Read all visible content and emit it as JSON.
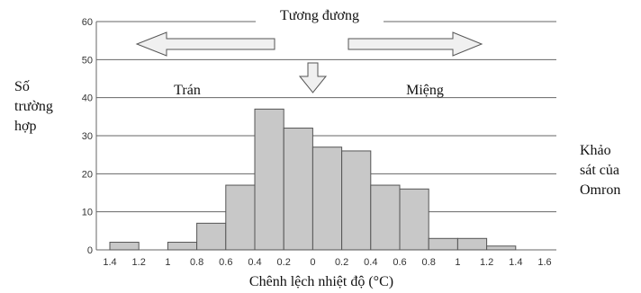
{
  "chart_data": {
    "type": "bar",
    "title": "Tương đương",
    "xlabel": "Chênh lệch nhiệt độ (°C)",
    "ylabel": "Số\ntrường\nhợp",
    "ylim": [
      0,
      60
    ],
    "yticks": [
      0,
      10,
      20,
      30,
      40,
      50,
      60
    ],
    "grid": "horizontal",
    "xtick_labels": [
      "1.4",
      "1.2",
      "1",
      "0.8",
      "0.6",
      "0.4",
      "0.2",
      "0",
      "0.2",
      "0.4",
      "0.6",
      "0.8",
      "1",
      "1.2",
      "1.4",
      "1.6"
    ],
    "bins": [
      {
        "from": "1.3",
        "to": "1.1",
        "value": 2
      },
      {
        "from": "0.9",
        "to": "0.7",
        "value": 2
      },
      {
        "from": "0.7",
        "to": "0.5",
        "value": 7
      },
      {
        "from": "0.5",
        "to": "0.3",
        "value": 17
      },
      {
        "from": "0.3",
        "to": "0.1",
        "value": 37
      },
      {
        "from": "0.1",
        "to": "0.1",
        "value": 32
      },
      {
        "from": "0.1",
        "to": "0.3",
        "value": 27
      },
      {
        "from": "0.3",
        "to": "0.5",
        "value": 26
      },
      {
        "from": "0.5",
        "to": "0.7",
        "value": 17
      },
      {
        "from": "0.7",
        "to": "0.9",
        "value": 16
      },
      {
        "from": "0.9",
        "to": "1.1",
        "value": 3
      },
      {
        "from": "1.1",
        "to": "1.3",
        "value": 3
      },
      {
        "from": "1.3",
        "to": "1.5",
        "value": 1
      }
    ],
    "bar_color": "#c8c8c8",
    "annotations": {
      "left": "Trán",
      "right": "Miệng"
    },
    "source_note": "Khảo\nsát của\nOmron"
  }
}
